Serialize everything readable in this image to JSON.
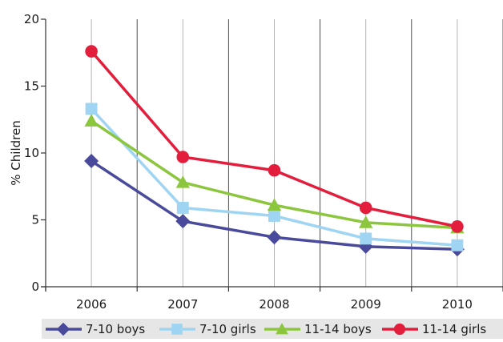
{
  "chart_data": {
    "type": "line",
    "title": "",
    "xlabel": "",
    "ylabel": "% Children",
    "categories": [
      "2006",
      "2007",
      "2008",
      "2009",
      "2010"
    ],
    "ylim": [
      0,
      20
    ],
    "yticks": [
      0,
      5,
      10,
      15,
      20
    ],
    "grid": true,
    "legend_position": "bottom",
    "series": [
      {
        "name": "7-10 boys",
        "color": "#4a4a9c",
        "marker": "diamond",
        "values": [
          9.4,
          4.9,
          3.7,
          3.0,
          2.8
        ]
      },
      {
        "name": "7-10 girls",
        "color": "#9fd5f2",
        "marker": "square",
        "values": [
          13.3,
          5.9,
          5.3,
          3.6,
          3.1
        ]
      },
      {
        "name": "11-14 boys",
        "color": "#8cc63f",
        "marker": "triangle",
        "values": [
          12.4,
          7.8,
          6.1,
          4.8,
          4.4
        ]
      },
      {
        "name": "11-14 girls",
        "color": "#e31e3c",
        "marker": "circle",
        "values": [
          17.6,
          9.7,
          8.7,
          5.9,
          4.5
        ]
      }
    ]
  }
}
